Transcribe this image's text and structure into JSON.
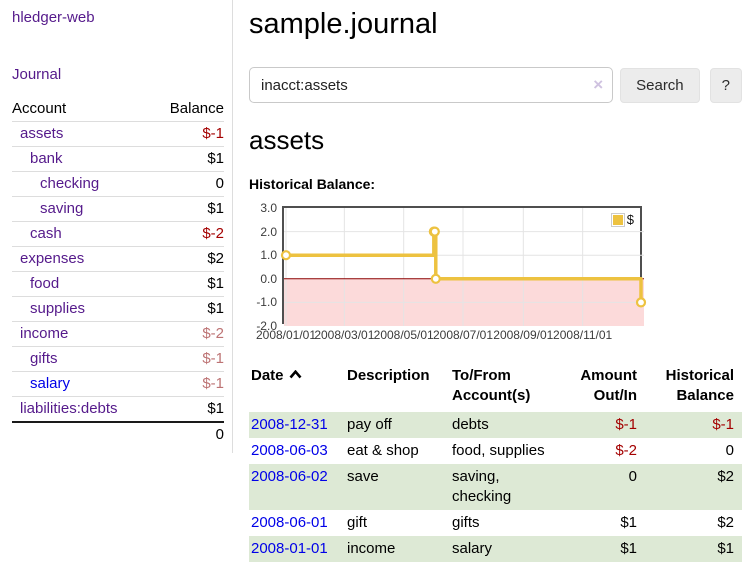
{
  "app_title": "hledger-web",
  "nav": {
    "journal": "Journal"
  },
  "sidebar": {
    "headers": {
      "account": "Account",
      "balance": "Balance"
    },
    "accounts": [
      {
        "name": "assets",
        "balance": "$-1",
        "depth": 1
      },
      {
        "name": "bank",
        "balance": "$1",
        "depth": 2
      },
      {
        "name": "checking",
        "balance": "0",
        "depth": 3
      },
      {
        "name": "saving",
        "balance": "$1",
        "depth": 3
      },
      {
        "name": "cash",
        "balance": "$-2",
        "depth": 2
      },
      {
        "name": "expenses",
        "balance": "$2",
        "depth": 1
      },
      {
        "name": "food",
        "balance": "$1",
        "depth": 2
      },
      {
        "name": "supplies",
        "balance": "$1",
        "depth": 2
      },
      {
        "name": "income",
        "balance": "$-2",
        "depth": 1
      },
      {
        "name": "gifts",
        "balance": "$-1",
        "depth": 2
      },
      {
        "name": "salary",
        "balance": "$-1",
        "depth": 2
      },
      {
        "name": "liabilities:debts",
        "balance": "$1",
        "depth": 1
      }
    ],
    "total": "0"
  },
  "main": {
    "title": "sample.journal",
    "search": {
      "value": "inacct:assets",
      "clear": "×",
      "search_button": "Search",
      "help_button": "?"
    },
    "heading": "assets",
    "chart_title": "Historical Balance:"
  },
  "chart_data": {
    "type": "line",
    "step": true,
    "title": "Historical Balance:",
    "series": [
      {
        "name": "$",
        "color": "#edc240",
        "points": [
          [
            "2008-01-01",
            1
          ],
          [
            "2008-06-01",
            2
          ],
          [
            "2008-06-02",
            2
          ],
          [
            "2008-06-03",
            0
          ],
          [
            "2008-12-31",
            -1
          ]
        ]
      }
    ],
    "xlim": [
      "2008-01-01",
      "2008-12-31"
    ],
    "ylim": [
      -2,
      3
    ],
    "yticks": [
      "3.0",
      "2.0",
      "1.0",
      "0.0",
      "-1.0",
      "-2.0"
    ],
    "xticks": [
      "2008/01/01",
      "2008/03/01",
      "2008/05/01",
      "2008/07/01",
      "2008/09/01",
      "2008/11/01"
    ],
    "grid": true,
    "legend_position": "top-right",
    "negative_region_color": "#fcdada",
    "zero_line_color": "#8b0000"
  },
  "register": {
    "headers": {
      "date": "Date",
      "description": "Description",
      "accounts": "To/From Account(s)",
      "amount": "Amount Out/In",
      "balance": "Historical Balance"
    },
    "rows": [
      {
        "date": "2008-12-31",
        "description": "pay off",
        "accounts": "debts",
        "amount": "$-1",
        "balance": "$-1"
      },
      {
        "date": "2008-06-03",
        "description": "eat & shop",
        "accounts": "food, supplies",
        "amount": "$-2",
        "balance": "0"
      },
      {
        "date": "2008-06-02",
        "description": "save",
        "accounts": "saving, checking",
        "amount": "0",
        "balance": "$2"
      },
      {
        "date": "2008-06-01",
        "description": "gift",
        "accounts": "gifts",
        "amount": "$1",
        "balance": "$2"
      },
      {
        "date": "2008-01-01",
        "description": "income",
        "accounts": "salary",
        "amount": "$1",
        "balance": "$1"
      }
    ]
  }
}
